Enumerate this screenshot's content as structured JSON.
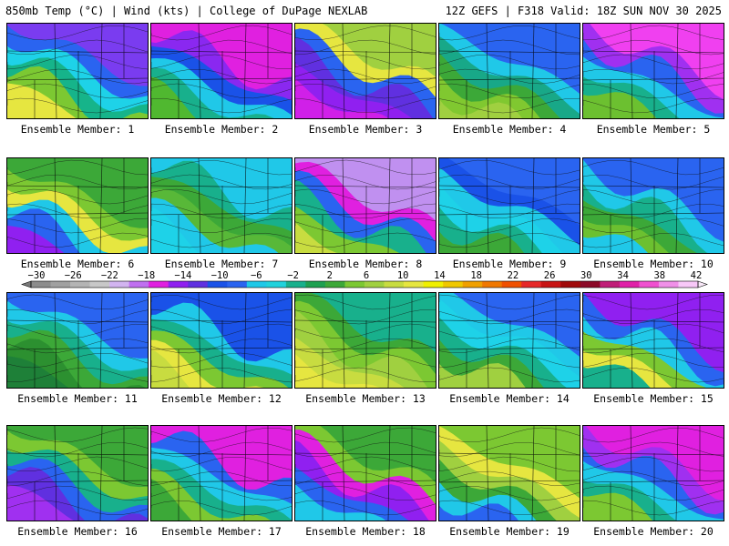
{
  "header": {
    "left": "850mb Temp (°C) | Wind (kts) | College of DuPage NEXLAB",
    "right": "12Z GEFS | F318 Valid: 18Z SUN NOV 30 2025"
  },
  "panels": [
    {
      "label": "Ensemble Member: 1",
      "palette": [
        "#7a3cf0",
        "#2a64f0",
        "#1ed2e8",
        "#16b48a",
        "#7cc832",
        "#e6e640"
      ]
    },
    {
      "label": "Ensemble Member: 2",
      "palette": [
        "#e020e0",
        "#8a28f0",
        "#1a52e8",
        "#20c8e8",
        "#18b08c",
        "#50b830"
      ]
    },
    {
      "label": "Ensemble Member: 3",
      "palette": [
        "#a0d040",
        "#e6e640",
        "#2a64f0",
        "#6030e0",
        "#9020f0",
        "#d020e8"
      ]
    },
    {
      "label": "Ensemble Member: 4",
      "palette": [
        "#2a64f0",
        "#20c8e8",
        "#18a888",
        "#3ca838",
        "#80c830",
        "#a0d040"
      ]
    },
    {
      "label": "Ensemble Member: 5",
      "palette": [
        "#f040f0",
        "#a030f0",
        "#2a64f0",
        "#20c8e8",
        "#18b08c",
        "#6cc030"
      ]
    },
    {
      "label": "Ensemble Member: 6",
      "palette": [
        "#3ca838",
        "#7cc832",
        "#e6e640",
        "#20c8e8",
        "#2a64f0",
        "#9020f0"
      ]
    },
    {
      "label": "Ensemble Member: 7",
      "palette": [
        "#20c8e8",
        "#18b08c",
        "#3ca838",
        "#58b838",
        "#20c8e8",
        "#1ed2e8"
      ]
    },
    {
      "label": "Ensemble Member: 8",
      "palette": [
        "#c090f0",
        "#e020e0",
        "#2a64f0",
        "#18b08c",
        "#7cc832",
        "#c8dc40"
      ]
    },
    {
      "label": "Ensemble Member: 9",
      "palette": [
        "#2a64f0",
        "#1a52e8",
        "#20c8e8",
        "#1ed2e8",
        "#18b08c",
        "#3ca838"
      ]
    },
    {
      "label": "Ensemble Member: 10",
      "palette": [
        "#2a64f0",
        "#20c8e8",
        "#18b08c",
        "#3ca838",
        "#6cc030",
        "#20c8e8"
      ]
    },
    {
      "label": "Ensemble Member: 11",
      "palette": [
        "#2a64f0",
        "#20c8e8",
        "#18b08c",
        "#3ca838",
        "#2c9030",
        "#1e8038"
      ]
    },
    {
      "label": "Ensemble Member: 12",
      "palette": [
        "#1a52e8",
        "#20c8e8",
        "#18b08c",
        "#7cc832",
        "#e6e640",
        "#c8dc40"
      ]
    },
    {
      "label": "Ensemble Member: 13",
      "palette": [
        "#18b08c",
        "#3ca838",
        "#7cc832",
        "#a0d040",
        "#c8dc40",
        "#e6e640"
      ]
    },
    {
      "label": "Ensemble Member: 14",
      "palette": [
        "#2a64f0",
        "#20c8e8",
        "#1ed2e8",
        "#18b08c",
        "#3ca838",
        "#a0d040"
      ]
    },
    {
      "label": "Ensemble Member: 15",
      "palette": [
        "#9020f0",
        "#2a64f0",
        "#20c8e8",
        "#7cc832",
        "#e6e640",
        "#18b08c"
      ]
    },
    {
      "label": "Ensemble Member: 16",
      "palette": [
        "#3ca838",
        "#7cc832",
        "#18b08c",
        "#2a64f0",
        "#6030e0",
        "#a030f0"
      ]
    },
    {
      "label": "Ensemble Member: 17",
      "palette": [
        "#e020e0",
        "#2a64f0",
        "#20c8e8",
        "#18b08c",
        "#7cc832",
        "#3ca838"
      ]
    },
    {
      "label": "Ensemble Member: 18",
      "palette": [
        "#3ca838",
        "#7cc832",
        "#e020e0",
        "#9020f0",
        "#2a64f0",
        "#20c8e8"
      ]
    },
    {
      "label": "Ensemble Member: 19",
      "palette": [
        "#7cc832",
        "#e6e640",
        "#a0d040",
        "#3ca838",
        "#20c8e8",
        "#2a64f0"
      ]
    },
    {
      "label": "Ensemble Member: 20",
      "palette": [
        "#e020e0",
        "#a030f0",
        "#2a64f0",
        "#20c8e8",
        "#18b08c",
        "#7cc832"
      ]
    }
  ],
  "colorbar": {
    "labels": [
      "−30",
      "−26",
      "−22",
      "−18",
      "−14",
      "−10",
      "−6",
      "−2",
      "2",
      "6",
      "10",
      "14",
      "18",
      "22",
      "26",
      "30",
      "34",
      "38",
      "42"
    ],
    "colors": [
      "#8c8c8c",
      "#a0a0a0",
      "#b4b4b4",
      "#c8c8c8",
      "#d2b4f0",
      "#c070f0",
      "#e020e0",
      "#9020f0",
      "#6030e0",
      "#1a52e8",
      "#2a64f0",
      "#1ec8e8",
      "#20d2dc",
      "#18b08c",
      "#1ea050",
      "#3ca838",
      "#7cc832",
      "#a0d040",
      "#c8dc40",
      "#e6e640",
      "#f0f000",
      "#f0c800",
      "#f0a000",
      "#f07800",
      "#f05000",
      "#e62828",
      "#c81414",
      "#a00a0a",
      "#8c0a28",
      "#c01e78",
      "#e020a8",
      "#f050d0",
      "#f090e8",
      "#f8c8f8"
    ]
  }
}
